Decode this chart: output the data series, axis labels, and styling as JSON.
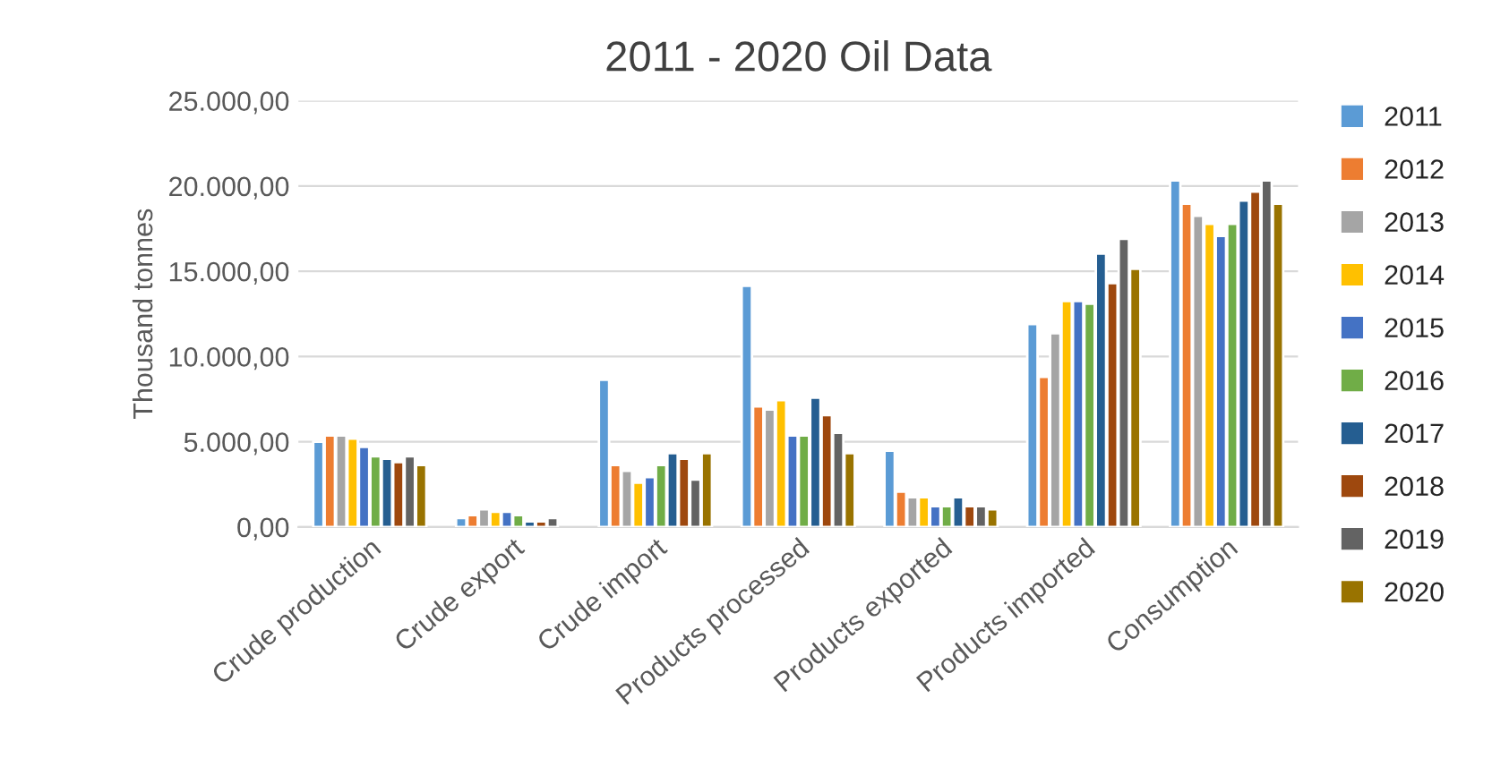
{
  "chart_data": {
    "type": "bar",
    "title": "2011 - 2020 Oil Data",
    "ylabel": "Thousand tonnes",
    "categories": [
      "Crude production",
      "Crude export",
      "Crude import",
      "Products processed",
      "Products exported",
      "Products imported",
      "Consumption"
    ],
    "series": [
      {
        "name": "2011",
        "color": "#5b9bd5",
        "values": [
          5000,
          520,
          8630,
          14150,
          4480,
          11900,
          20330
        ]
      },
      {
        "name": "2012",
        "color": "#ed7d31",
        "values": [
          5370,
          700,
          3630,
          7070,
          2070,
          8810,
          18960
        ]
      },
      {
        "name": "2013",
        "color": "#a5a5a5",
        "values": [
          5370,
          1040,
          3300,
          6890,
          1740,
          11370,
          18260
        ]
      },
      {
        "name": "2014",
        "color": "#ffc000",
        "values": [
          5190,
          890,
          2600,
          7440,
          1740,
          13260,
          17780
        ]
      },
      {
        "name": "2015",
        "color": "#4472c4",
        "values": [
          4700,
          890,
          2930,
          5370,
          1220,
          13260,
          17070
        ]
      },
      {
        "name": "2016",
        "color": "#70ad47",
        "values": [
          4150,
          700,
          3630,
          5370,
          1220,
          13100,
          17780
        ]
      },
      {
        "name": "2017",
        "color": "#255e91",
        "values": [
          4000,
          330,
          4330,
          7590,
          1740,
          16040,
          19150
        ]
      },
      {
        "name": "2018",
        "color": "#9e480e",
        "values": [
          3800,
          330,
          4000,
          6560,
          1220,
          14300,
          19670
        ]
      },
      {
        "name": "2019",
        "color": "#636363",
        "values": [
          4150,
          520,
          2780,
          5520,
          1220,
          16900,
          20330
        ]
      },
      {
        "name": "2020",
        "color": "#997300",
        "values": [
          3630,
          null,
          4330,
          4330,
          1040,
          15150,
          18960
        ]
      }
    ],
    "ylim": [
      0,
      25000
    ],
    "yticks": [
      {
        "value": 0,
        "label": "0,00"
      },
      {
        "value": 5000,
        "label": "5.000,00"
      },
      {
        "value": 10000,
        "label": "10.000,00"
      },
      {
        "value": 15000,
        "label": "15.000,00"
      },
      {
        "value": 20000,
        "label": "20.000,00"
      },
      {
        "value": 25000,
        "label": "25.000,00"
      }
    ],
    "grid": "y",
    "legend": "right"
  }
}
